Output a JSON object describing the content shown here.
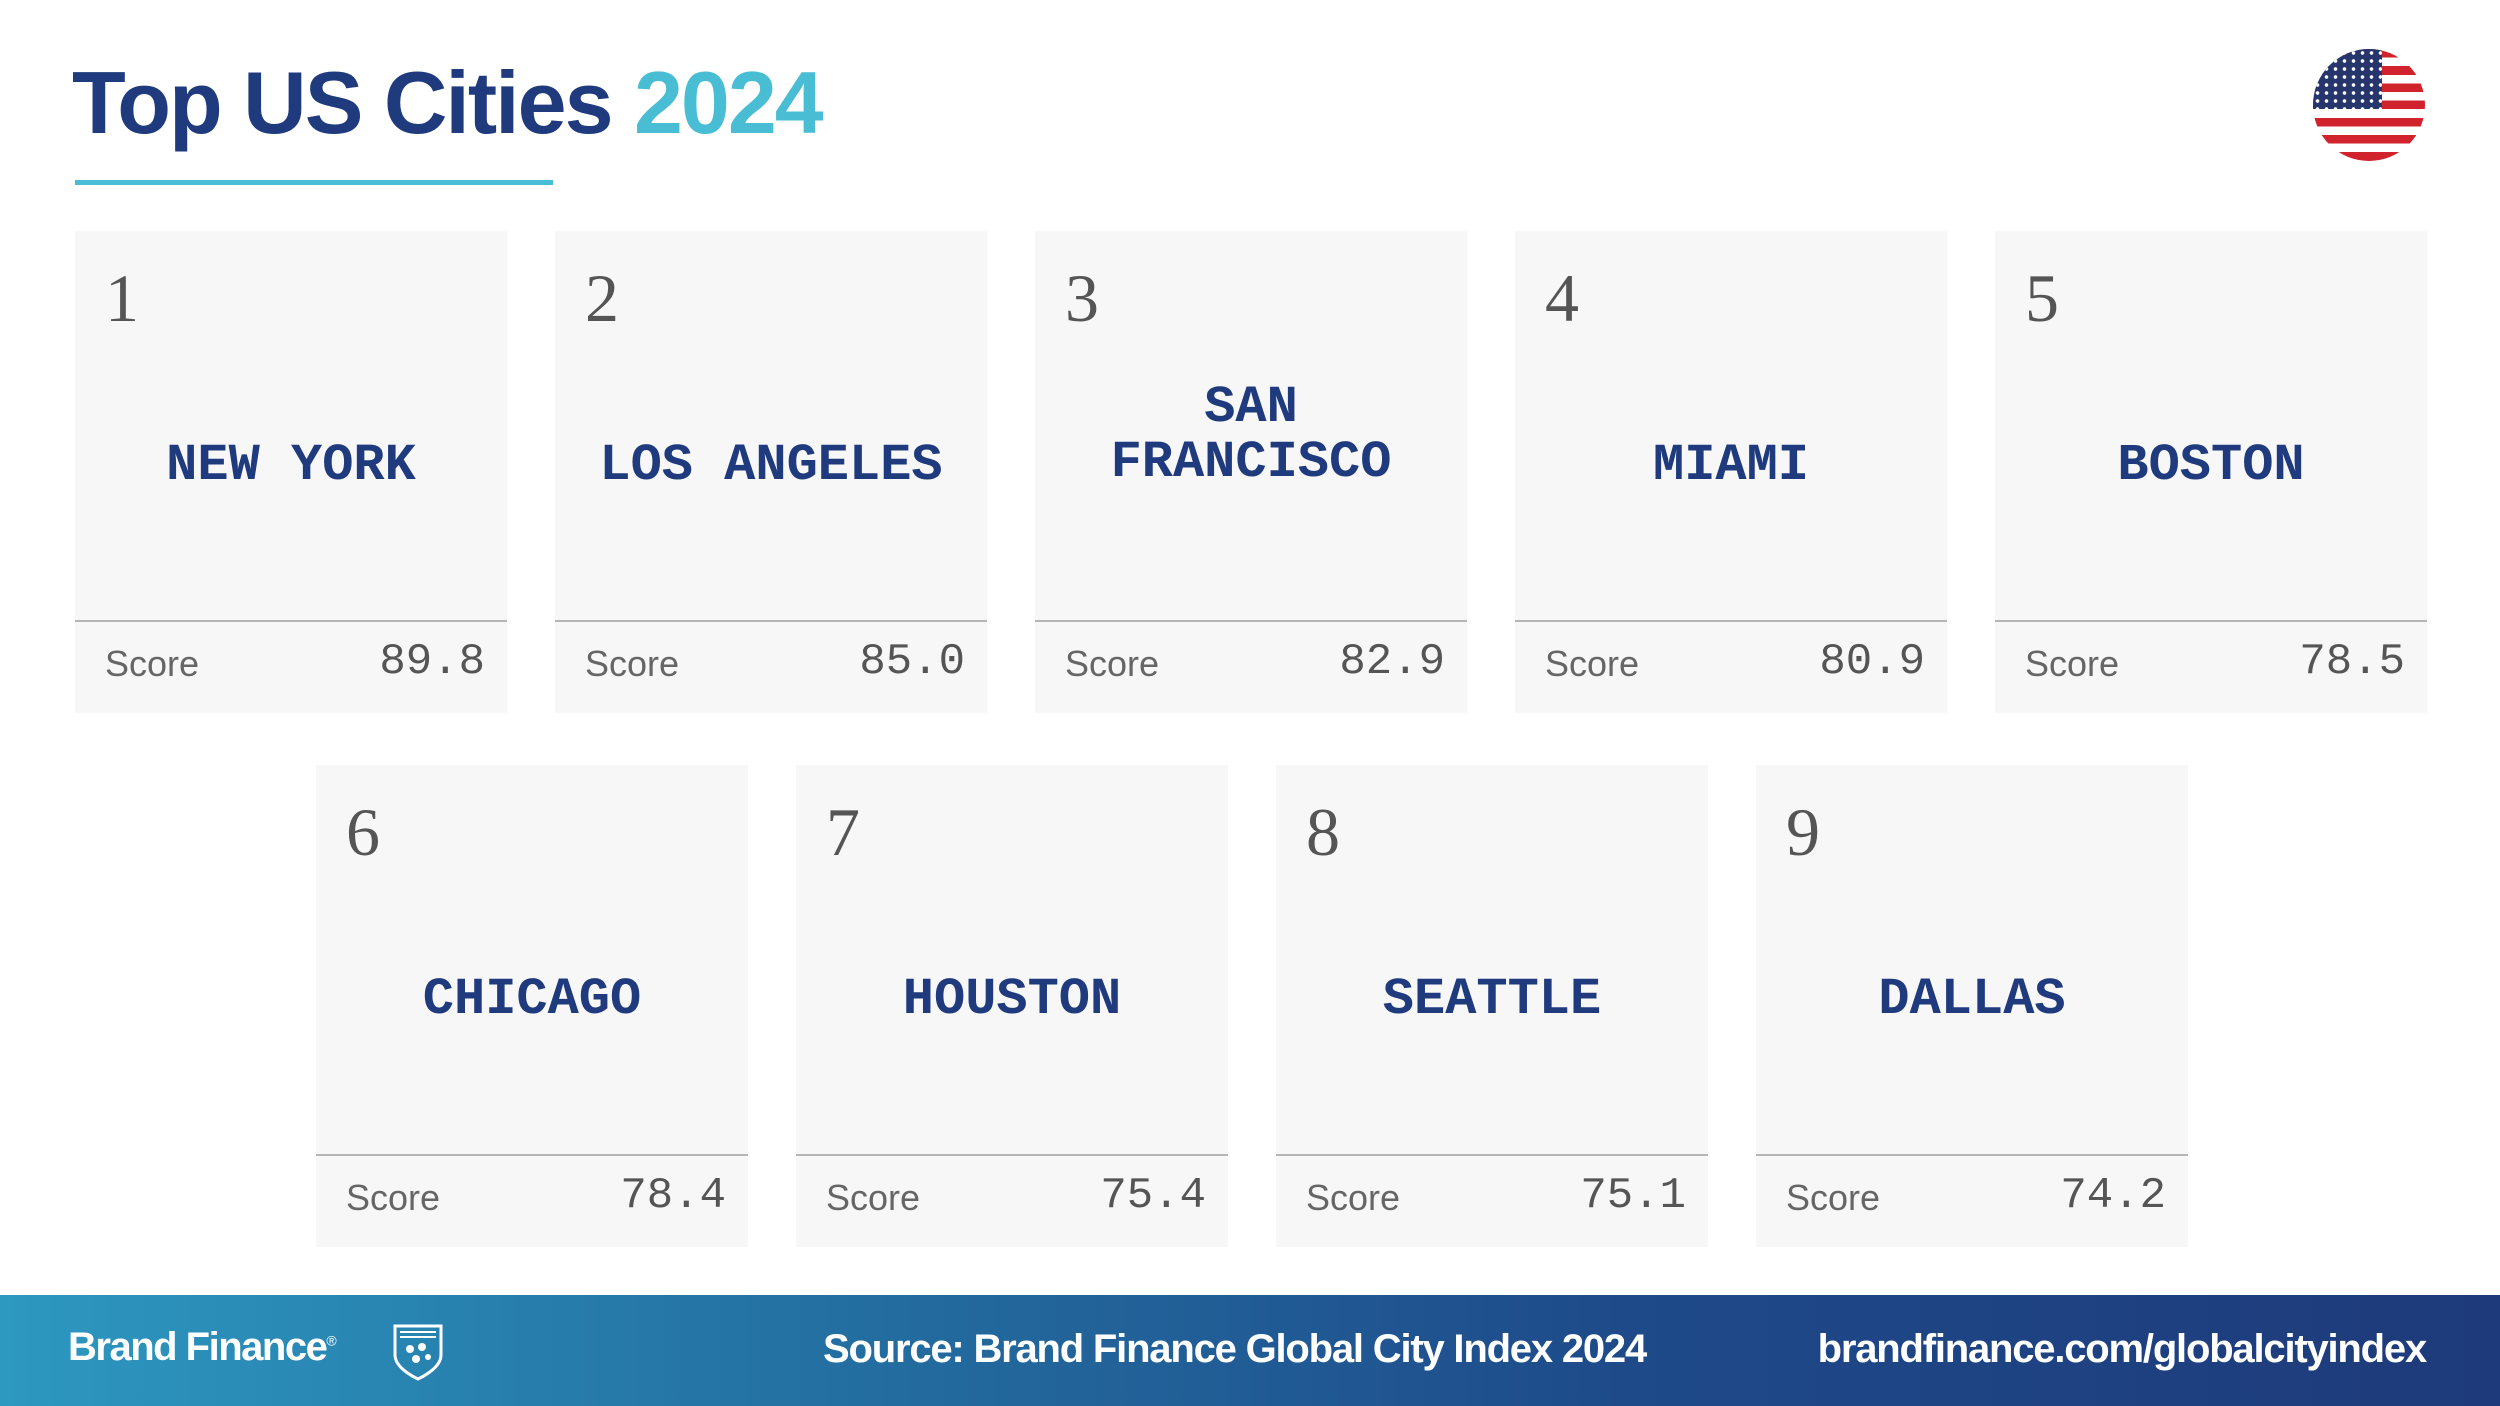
{
  "header": {
    "title": "Top US Cities",
    "year": "2024",
    "flag_icon": "us-flag-icon"
  },
  "colors": {
    "navy": "#1f3b7e",
    "accent": "#48bdd3",
    "card_bg": "#f7f7f7"
  },
  "score_label": "Score",
  "cities": [
    {
      "rank": "1",
      "name": "NEW YORK",
      "score": "89.8"
    },
    {
      "rank": "2",
      "name": "LOS ANGELES",
      "score": "85.0"
    },
    {
      "rank": "3",
      "name": "SAN FRANCISCO",
      "score": "82.9"
    },
    {
      "rank": "4",
      "name": "MIAMI",
      "score": "80.9"
    },
    {
      "rank": "5",
      "name": "BOSTON",
      "score": "78.5"
    },
    {
      "rank": "6",
      "name": "CHICAGO",
      "score": "78.4"
    },
    {
      "rank": "7",
      "name": "HOUSTON",
      "score": "75.4"
    },
    {
      "rank": "8",
      "name": "SEATTLE",
      "score": "75.1"
    },
    {
      "rank": "9",
      "name": "DALLAS",
      "score": "74.2"
    }
  ],
  "footer": {
    "brand": "Brand Finance",
    "registered": "®",
    "source": "Source: Brand Finance Global City Index 2024",
    "url": "brandfinance.com/globalcityindex"
  }
}
